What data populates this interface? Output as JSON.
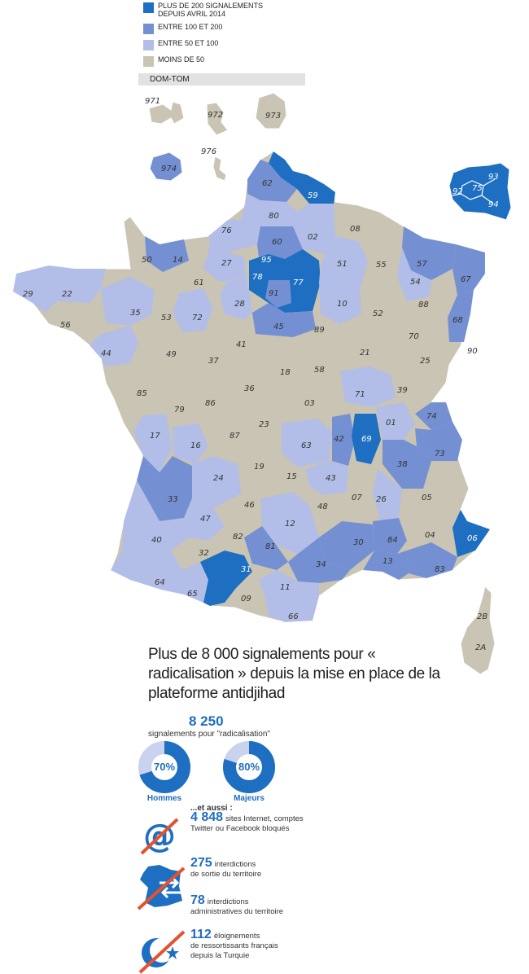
{
  "legend": [
    {
      "label": "PLUS DE 200 SIGNALEMENTS DEPUIS AVRIL 2014",
      "color": "#1e6fc1"
    },
    {
      "label": "ENTRE 100 ET 200",
      "color": "#7490d2"
    },
    {
      "label": "ENTRE 50 ET 100",
      "color": "#b2bee8"
    },
    {
      "label": "MOINS DE 50",
      "color": "#c9c4b3"
    }
  ],
  "domtom_label": "DOM-TOM",
  "departments": [
    {
      "code": "971",
      "cat": 3
    },
    {
      "code": "972",
      "cat": 3
    },
    {
      "code": "973",
      "cat": 3
    },
    {
      "code": "974",
      "cat": 1
    },
    {
      "code": "976",
      "cat": 3
    },
    {
      "code": "59",
      "cat": 0
    },
    {
      "code": "62",
      "cat": 1
    },
    {
      "code": "80",
      "cat": 2
    },
    {
      "code": "02",
      "cat": 2
    },
    {
      "code": "08",
      "cat": 3
    },
    {
      "code": "76",
      "cat": 2
    },
    {
      "code": "60",
      "cat": 1
    },
    {
      "code": "14",
      "cat": 1
    },
    {
      "code": "50",
      "cat": 3
    },
    {
      "code": "27",
      "cat": 2
    },
    {
      "code": "95",
      "cat": 0
    },
    {
      "code": "78",
      "cat": 0
    },
    {
      "code": "91",
      "cat": 1
    },
    {
      "code": "77",
      "cat": 0
    },
    {
      "code": "51",
      "cat": 2
    },
    {
      "code": "55",
      "cat": 3
    },
    {
      "code": "57",
      "cat": 1
    },
    {
      "code": "67",
      "cat": 1
    },
    {
      "code": "54",
      "cat": 2
    },
    {
      "code": "68",
      "cat": 1
    },
    {
      "code": "88",
      "cat": 3
    },
    {
      "code": "52",
      "cat": 3
    },
    {
      "code": "10",
      "cat": 2
    },
    {
      "code": "89",
      "cat": 3
    },
    {
      "code": "45",
      "cat": 1
    },
    {
      "code": "28",
      "cat": 2
    },
    {
      "code": "61",
      "cat": 3
    },
    {
      "code": "72",
      "cat": 2
    },
    {
      "code": "53",
      "cat": 3
    },
    {
      "code": "35",
      "cat": 2
    },
    {
      "code": "22",
      "cat": 2
    },
    {
      "code": "29",
      "cat": 2
    },
    {
      "code": "56",
      "cat": 3
    },
    {
      "code": "44",
      "cat": 2
    },
    {
      "code": "49",
      "cat": 3
    },
    {
      "code": "37",
      "cat": 3
    },
    {
      "code": "41",
      "cat": 3
    },
    {
      "code": "18",
      "cat": 3
    },
    {
      "code": "58",
      "cat": 3
    },
    {
      "code": "21",
      "cat": 3
    },
    {
      "code": "70",
      "cat": 3
    },
    {
      "code": "25",
      "cat": 3
    },
    {
      "code": "90",
      "cat": 3
    },
    {
      "code": "39",
      "cat": 3
    },
    {
      "code": "71",
      "cat": 2
    },
    {
      "code": "36",
      "cat": 3
    },
    {
      "code": "86",
      "cat": 3
    },
    {
      "code": "79",
      "cat": 3
    },
    {
      "code": "85",
      "cat": 3
    },
    {
      "code": "17",
      "cat": 2
    },
    {
      "code": "16",
      "cat": 2
    },
    {
      "code": "87",
      "cat": 3
    },
    {
      "code": "23",
      "cat": 3
    },
    {
      "code": "03",
      "cat": 3
    },
    {
      "code": "63",
      "cat": 2
    },
    {
      "code": "42",
      "cat": 1
    },
    {
      "code": "69",
      "cat": 0
    },
    {
      "code": "01",
      "cat": 2
    },
    {
      "code": "74",
      "cat": 1
    },
    {
      "code": "73",
      "cat": 1
    },
    {
      "code": "38",
      "cat": 1
    },
    {
      "code": "26",
      "cat": 2
    },
    {
      "code": "07",
      "cat": 3
    },
    {
      "code": "43",
      "cat": 2
    },
    {
      "code": "15",
      "cat": 3
    },
    {
      "code": "19",
      "cat": 3
    },
    {
      "code": "24",
      "cat": 2
    },
    {
      "code": "33",
      "cat": 1
    },
    {
      "code": "47",
      "cat": 2
    },
    {
      "code": "46",
      "cat": 3
    },
    {
      "code": "12",
      "cat": 2
    },
    {
      "code": "48",
      "cat": 3
    },
    {
      "code": "30",
      "cat": 1
    },
    {
      "code": "84",
      "cat": 1
    },
    {
      "code": "05",
      "cat": 3
    },
    {
      "code": "04",
      "cat": 3
    },
    {
      "code": "06",
      "cat": 0
    },
    {
      "code": "83",
      "cat": 1
    },
    {
      "code": "13",
      "cat": 1
    },
    {
      "code": "34",
      "cat": 1
    },
    {
      "code": "81",
      "cat": 1
    },
    {
      "code": "82",
      "cat": 3
    },
    {
      "code": "32",
      "cat": 3
    },
    {
      "code": "40",
      "cat": 2
    },
    {
      "code": "64",
      "cat": 2
    },
    {
      "code": "65",
      "cat": 2
    },
    {
      "code": "31",
      "cat": 0
    },
    {
      "code": "09",
      "cat": 3
    },
    {
      "code": "11",
      "cat": 2
    },
    {
      "code": "66",
      "cat": 2
    },
    {
      "code": "2B",
      "cat": 3
    },
    {
      "code": "2A",
      "cat": 3
    },
    {
      "code": "93",
      "cat": 0
    },
    {
      "code": "75",
      "cat": 0
    },
    {
      "code": "92",
      "cat": 0
    },
    {
      "code": "94",
      "cat": 0
    }
  ],
  "headline": "Plus de 8 000 signalements pour « radicalisation » depuis la mise en place de la plateforme antidjihad",
  "total": {
    "value": "8 250",
    "label": "signalements pour \"radicalisation\""
  },
  "donuts": [
    {
      "percent": 70,
      "text": "70%",
      "caption": "Hommes"
    },
    {
      "percent": 80,
      "text": "80%",
      "caption": "Majeurs"
    }
  ],
  "also_label": "...et aussi :",
  "stats": [
    {
      "num": "4 848",
      "text1": "sites Internet, comptes",
      "text2": "Twitter ou Facebook bloqués",
      "icon": "at-sign-crossed-icon"
    },
    {
      "num": "275",
      "text1": "interdictions",
      "text2": "de sortie du territoire",
      "icon": "france-arrows-crossed-icon"
    },
    {
      "num": "78",
      "text1": "interdictions",
      "text2": "administratives du territoire",
      "icon": "france-arrows-crossed-icon"
    },
    {
      "num": "112",
      "text1": "éloignements",
      "text2": "de ressortissants français",
      "text3": "depuis la Turquie",
      "icon": "crescent-star-crossed-icon"
    }
  ]
}
